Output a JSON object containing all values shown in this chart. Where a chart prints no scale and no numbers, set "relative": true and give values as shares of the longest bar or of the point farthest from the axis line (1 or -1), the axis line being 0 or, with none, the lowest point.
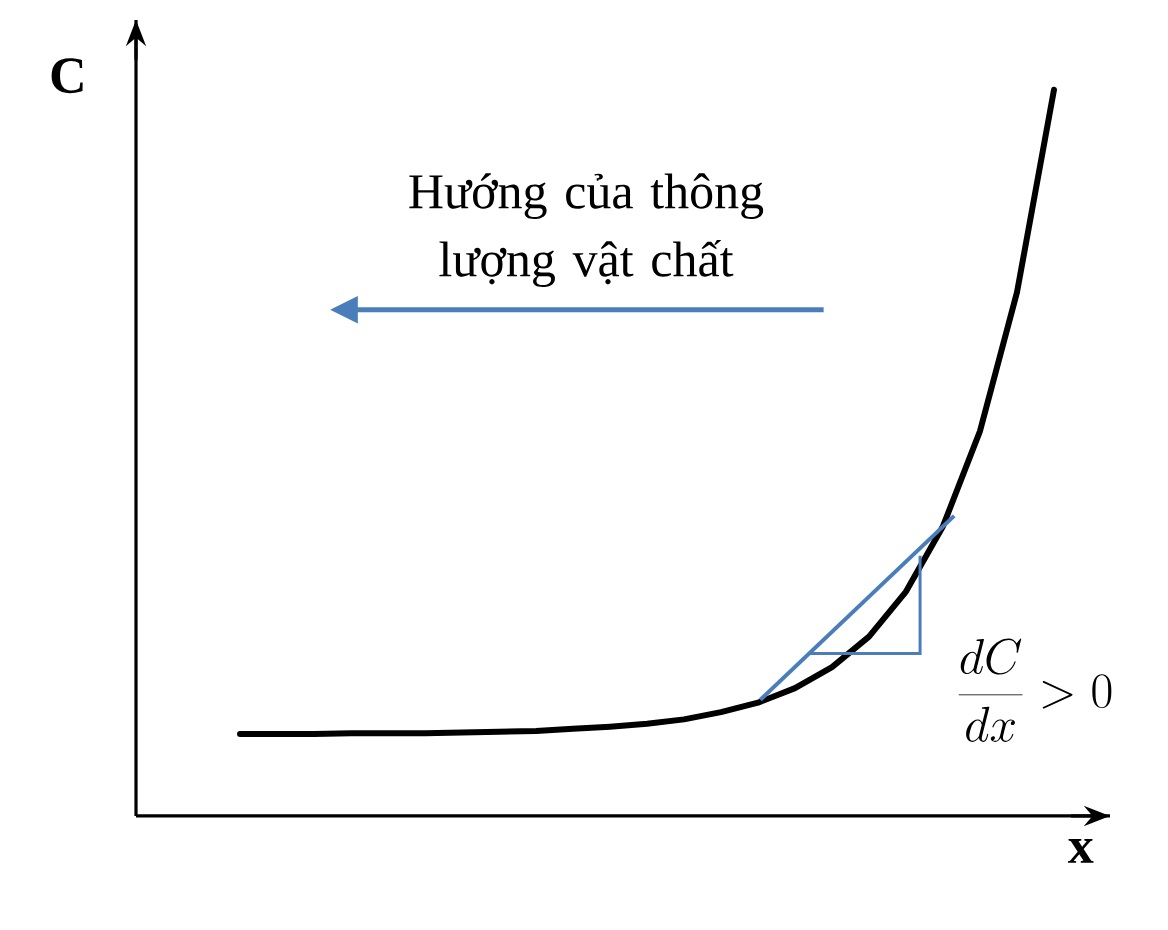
{
  "chart_data": {
    "type": "line",
    "relative": true,
    "xlabel": "x",
    "ylabel": "C",
    "tick_labels": false,
    "line_style": "solid",
    "marker": "none",
    "annotations": [
      "Hướng của thông lượng vật chất",
      "\\frac{dC}{dx} > 0"
    ],
    "categories": [
      null,
      null,
      null,
      null,
      null,
      null,
      null,
      null,
      null,
      null,
      null,
      null,
      null,
      null,
      null,
      null,
      null,
      null,
      null,
      null,
      null,
      null,
      null
    ],
    "series": [
      {
        "color": "#000000",
        "values": [
          0.113,
          0.113,
          0.113,
          0.114,
          0.114,
          0.114,
          0.115,
          0.116,
          0.117,
          0.12,
          0.123,
          0.127,
          0.133,
          0.143,
          0.156,
          0.176,
          0.205,
          0.247,
          0.309,
          0.399,
          0.53,
          0.721,
          1.0
        ]
      }
    ]
  }
}
